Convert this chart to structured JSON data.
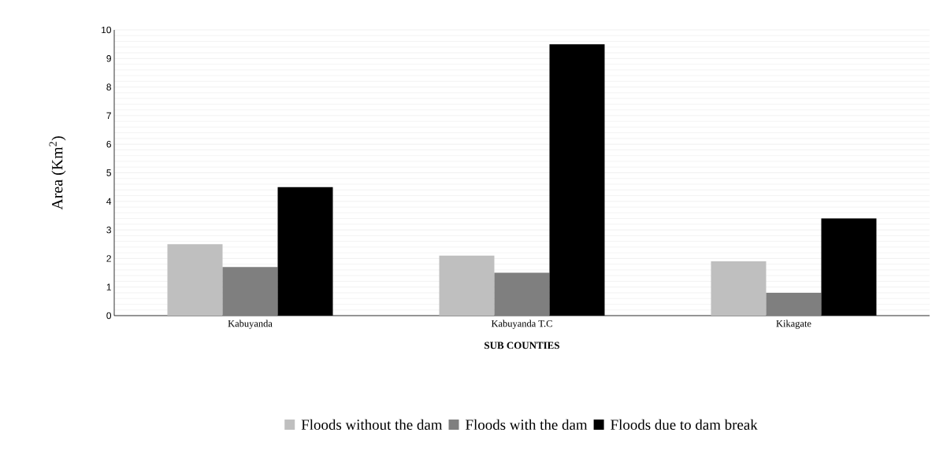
{
  "chart_data": {
    "type": "bar",
    "xlabel": "SUB COUNTIES",
    "ylabel": "Area (Km$^{2}$)",
    "categories": [
      "Kabuyanda",
      "Kabuyanda T.C",
      "Kikagate"
    ],
    "series": [
      {
        "name": "Floods without the dam",
        "color": "#bfbfbf",
        "values": [
          2.5,
          2.1,
          1.9
        ]
      },
      {
        "name": "Floods with the dam",
        "color": "#7f7f7f",
        "values": [
          1.7,
          1.5,
          0.8
        ]
      },
      {
        "name": "Floods due to dam break",
        "color": "#000000",
        "values": [
          4.5,
          9.5,
          3.4
        ]
      }
    ],
    "ylim": [
      0,
      10
    ],
    "yticks": [
      0,
      1,
      2,
      3,
      4,
      5,
      6,
      7,
      8,
      9,
      10
    ],
    "grid": "y",
    "legend": "bottom"
  }
}
